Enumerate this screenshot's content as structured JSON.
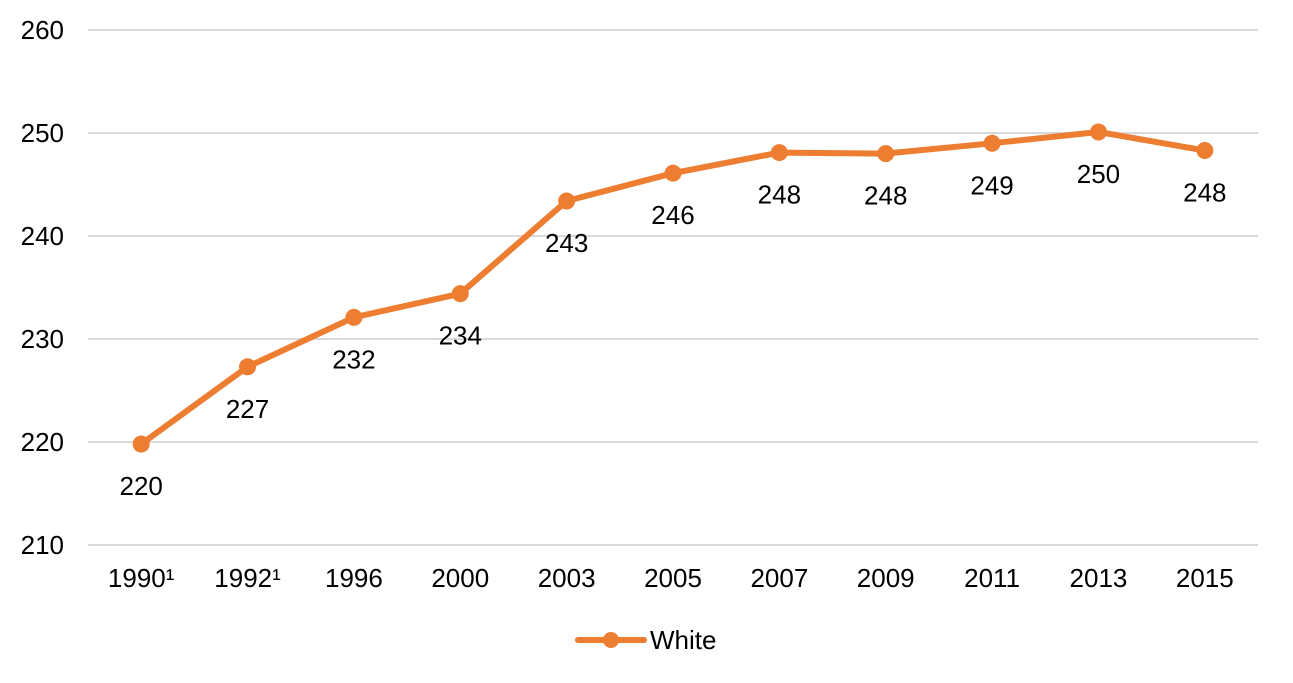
{
  "chart_data": {
    "type": "line",
    "categories": [
      "1990¹",
      "1992¹",
      "1996",
      "2000",
      "2003",
      "2005",
      "2007",
      "2009",
      "2011",
      "2013",
      "2015"
    ],
    "series": [
      {
        "name": "White",
        "values": [
          219.8,
          227.3,
          232.1,
          234.4,
          243.4,
          246.1,
          248.1,
          248.0,
          249.0,
          250.1,
          248.3
        ],
        "labels": [
          "220",
          "227",
          "232",
          "234",
          "243",
          "246",
          "248",
          "248",
          "249",
          "250",
          "248"
        ],
        "color": "#ED7D31"
      }
    ],
    "ylim": [
      210,
      260
    ],
    "yticks": [
      "210",
      "220",
      "230",
      "240",
      "250",
      "260"
    ],
    "grid": true,
    "legend": "bottom-center"
  }
}
